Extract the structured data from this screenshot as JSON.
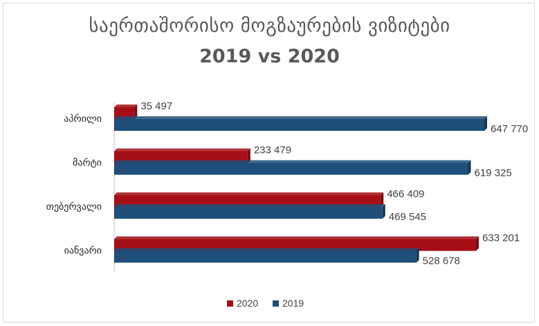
{
  "chart_data": {
    "type": "bar",
    "orientation": "horizontal",
    "style": "3d",
    "title_line1": "საერთაშორისო მოგზაურების ვიზიტები",
    "title_line2": "2019 vs 2020",
    "categories": [
      "აპრილი",
      "მარტი",
      "თებერვალი",
      "იანვარი"
    ],
    "series": [
      {
        "name": "2020",
        "color": "#a50f15",
        "values": [
          35497,
          233479,
          466409,
          633201
        ],
        "labels": [
          "35 497",
          "233 479",
          "466 409",
          "633 201"
        ]
      },
      {
        "name": "2019",
        "color": "#1f4e79",
        "values": [
          647770,
          619325,
          469545,
          528678
        ],
        "labels": [
          "647 770",
          "619 325",
          "469 545",
          "528 678"
        ]
      }
    ],
    "legend": "bottom",
    "grid": false
  }
}
